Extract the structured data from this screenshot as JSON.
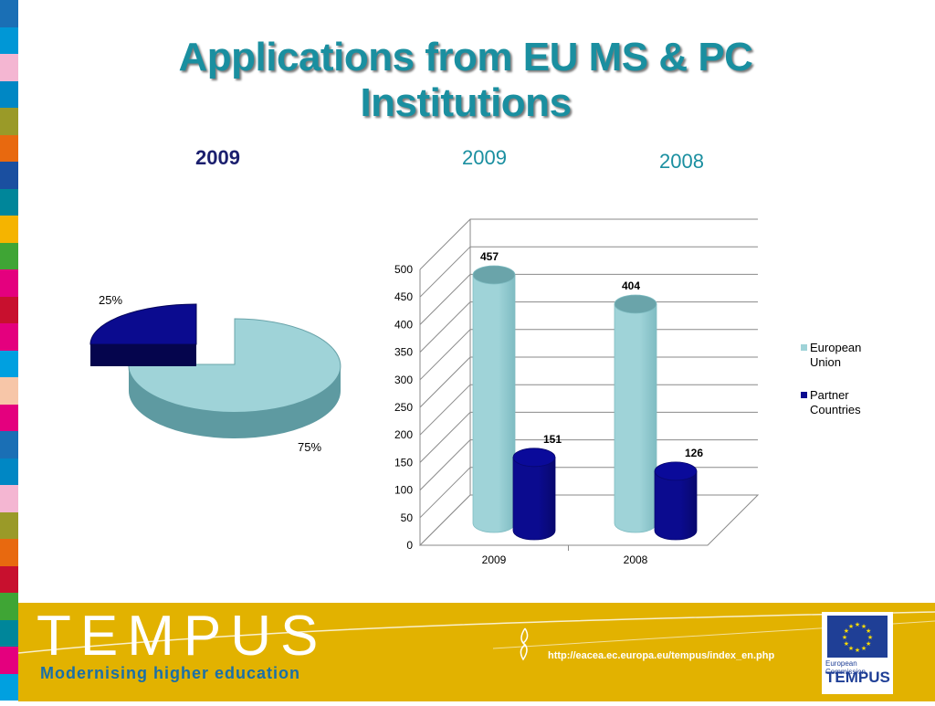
{
  "slide": {
    "title_line1": "Applications from EU MS & PC",
    "title_line2": "Institutions",
    "pie_year": "2009",
    "bar_year_1": "2009",
    "bar_year_2": "2008"
  },
  "chart_data": [
    {
      "type": "pie",
      "labels": [
        "75%",
        "25%"
      ],
      "values": [
        75,
        25
      ],
      "colors": [
        "#9fd3d8",
        "#0b0b8f"
      ]
    },
    {
      "type": "bar",
      "categories": [
        "2009",
        "2008"
      ],
      "series": [
        {
          "name": "European Union",
          "values": [
            457,
            404
          ],
          "color": "#9fd3d8"
        },
        {
          "name": "Partner Countries",
          "values": [
            151,
            126
          ],
          "color": "#0b0b8f"
        }
      ],
      "ylim": [
        0,
        500
      ],
      "yticks": [
        "0",
        "50",
        "100",
        "150",
        "200",
        "250",
        "300",
        "350",
        "400",
        "450",
        "500"
      ],
      "grid": true,
      "legend_position": "right"
    }
  ],
  "footer": {
    "logo": "TEMPUS",
    "tagline": "Modernising higher education",
    "url": "http://eacea.ec.europa.eu/tempus/index_en.php",
    "ec_label": "European Commission",
    "ec_tempus": "TEMPUS"
  },
  "colors": {
    "title": "#1a8fa0",
    "footer": "#e2b200",
    "stripes": [
      "#1a6fb5",
      "#0097d6",
      "#f4b6d2",
      "#0087c4",
      "#9a9a28",
      "#e8690f",
      "#1a4fa0",
      "#00869a",
      "#f5b400",
      "#3fa535",
      "#e4007e",
      "#c8102e",
      "#e4007e",
      "#00a0e0",
      "#f7c6a8",
      "#e4007e",
      "#1a6fb5",
      "#0087c4",
      "#f4b6d2",
      "#9a9a28",
      "#e8690f",
      "#c8102e",
      "#3fa535",
      "#00869a",
      "#e4007e",
      "#00a0e0"
    ]
  }
}
